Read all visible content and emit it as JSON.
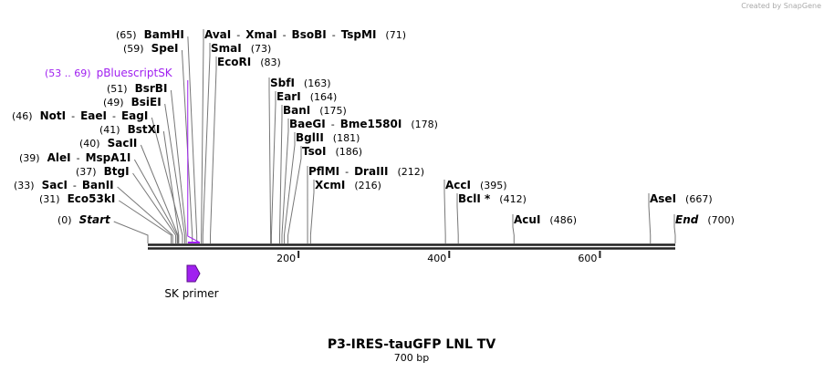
{
  "created_by": "Created by SnapGene",
  "separator": "-",
  "rows": [
    {
      "pos": "(65)",
      "names": [
        "BamHI"
      ]
    },
    {
      "pos": "(71)",
      "names": [
        "AvaI",
        "XmaI",
        "BsoBI",
        "TspMI"
      ]
    },
    {
      "pos": "(59)",
      "names": [
        "SpeI"
      ]
    },
    {
      "pos": "(73)",
      "names": [
        "SmaI"
      ]
    },
    {
      "pos": "(83)",
      "names": [
        "EcoRI"
      ]
    },
    {
      "pos": "(163)",
      "names": [
        "SbfI"
      ]
    },
    {
      "pos": "(51)",
      "names": [
        "BsrBI"
      ]
    },
    {
      "pos": "(164)",
      "names": [
        "EarI"
      ]
    },
    {
      "pos": "(49)",
      "names": [
        "BsiEI"
      ]
    },
    {
      "pos": "(175)",
      "names": [
        "BanI"
      ]
    },
    {
      "pos": "(46)",
      "names": [
        "NotI",
        "EaeI",
        "EagI"
      ]
    },
    {
      "pos": "(178)",
      "names": [
        "BaeGI",
        "Bme1580I"
      ]
    },
    {
      "pos": "(41)",
      "names": [
        "BstXI"
      ]
    },
    {
      "pos": "(181)",
      "names": [
        "BglII"
      ]
    },
    {
      "pos": "(40)",
      "names": [
        "SacII"
      ]
    },
    {
      "pos": "(186)",
      "names": [
        "TsoI"
      ]
    },
    {
      "pos": "(39)",
      "names": [
        "AleI",
        "MspA1I"
      ]
    },
    {
      "pos": "(37)",
      "names": [
        "BtgI"
      ]
    },
    {
      "pos": "(212)",
      "names": [
        "PflMI",
        "DraIII"
      ]
    },
    {
      "pos": "(33)",
      "names": [
        "SacI",
        "BanII"
      ]
    },
    {
      "pos": "(216)",
      "names": [
        "XcmI"
      ]
    },
    {
      "pos": "(395)",
      "names": [
        "AccI"
      ]
    },
    {
      "pos": "(31)",
      "names": [
        "Eco53kI"
      ]
    },
    {
      "pos": "(412)",
      "names": [
        "BclI *"
      ]
    },
    {
      "pos": "(0)",
      "names": [
        "Start"
      ]
    },
    {
      "pos": "(486)",
      "names": [
        "AcuI"
      ]
    },
    {
      "pos": "(667)",
      "names": [
        "AseI"
      ]
    },
    {
      "pos": "(700)",
      "names": [
        "End"
      ]
    }
  ],
  "feature": {
    "pos": "(53 .. 69)",
    "label": "pBluescriptSK"
  },
  "primer": "SK primer",
  "ticks": [
    "200",
    "400",
    "600"
  ],
  "title": "P3-IRES-tauGFP LNL TV",
  "subtitle": "700 bp"
}
